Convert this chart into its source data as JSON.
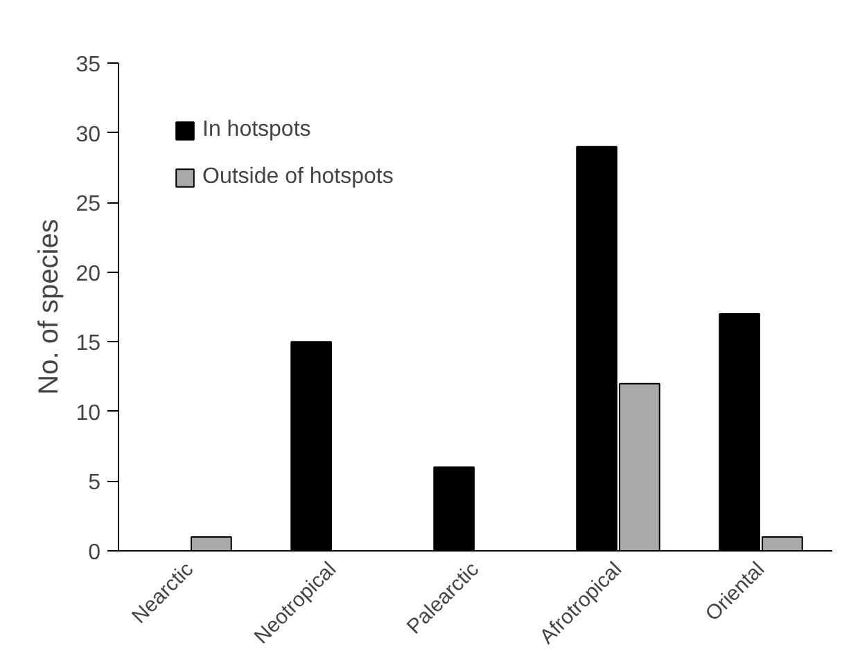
{
  "chart_data": {
    "type": "bar",
    "ylabel": "No. of species",
    "categories": [
      "Nearctic",
      "Neotropical",
      "Palearctic",
      "Afrotropical",
      "Oriental"
    ],
    "series": [
      {
        "name": "In hotspots",
        "color": "#000000",
        "values": [
          0,
          15,
          6,
          29,
          17
        ]
      },
      {
        "name": "Outside of hotspots",
        "color": "#aaaaaa",
        "values": [
          1,
          0,
          0,
          12,
          1
        ]
      }
    ],
    "ylim": [
      0,
      35
    ],
    "yticks": [
      0,
      5,
      10,
      15,
      20,
      25,
      30,
      35
    ],
    "grid": false,
    "legend": "top left"
  }
}
